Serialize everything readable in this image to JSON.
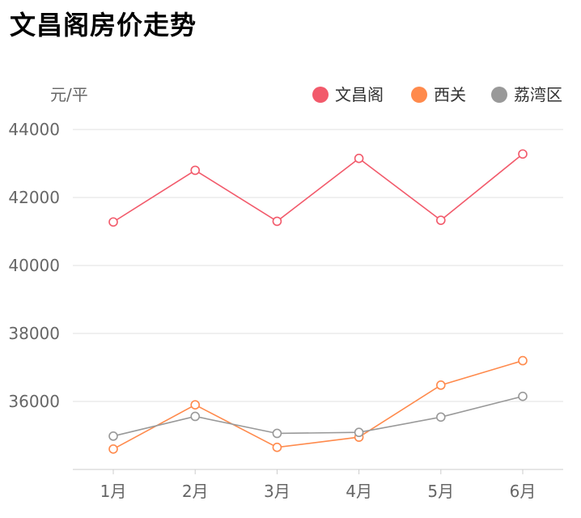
{
  "page": {
    "title": "文昌阁房价走势"
  },
  "chart_data": {
    "type": "line",
    "title": "文昌阁房价走势",
    "ylabel": "元/平",
    "xlabel": "",
    "categories": [
      "1月",
      "2月",
      "3月",
      "4月",
      "5月",
      "6月"
    ],
    "ylim": [
      34000,
      44000
    ],
    "yticks": [
      36000,
      38000,
      40000,
      42000,
      44000
    ],
    "grid": true,
    "legend": "top-right",
    "series": [
      {
        "name": "文昌阁",
        "color": "#f25a6b",
        "values": [
          41280,
          42800,
          41300,
          43150,
          41330,
          43280
        ]
      },
      {
        "name": "西关",
        "color": "#ff8a4c",
        "values": [
          34600,
          35900,
          34650,
          34950,
          36480,
          37200
        ]
      },
      {
        "name": "荔湾区",
        "color": "#999999",
        "values": [
          34980,
          35560,
          35060,
          35090,
          35540,
          36150
        ]
      }
    ]
  }
}
